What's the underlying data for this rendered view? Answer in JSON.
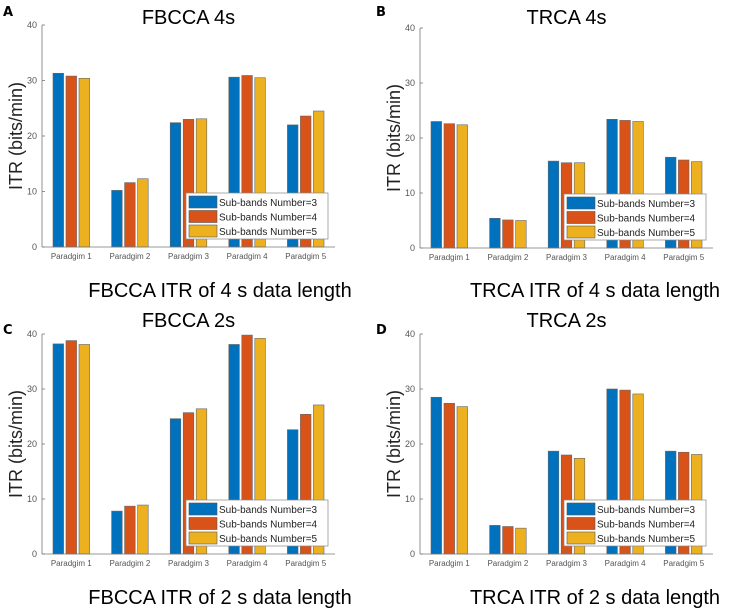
{
  "colors": {
    "s3": "#0072BD",
    "s4": "#D95319",
    "s5": "#EDB120"
  },
  "chart_data": [
    {
      "type": "bar",
      "panel_label": "A",
      "title": "FBCCA 4s",
      "caption": "FBCCA ITR of 4 s data length",
      "ylabel": "ITR (bits/min)",
      "xlabel": "",
      "ylim": [
        0,
        40
      ],
      "yticks": [
        0,
        10,
        20,
        30,
        40
      ],
      "categories": [
        "Paradgim 1",
        "Paradgim 2",
        "Paradgim 3",
        "Paradgim 4",
        "Paradgim 5"
      ],
      "legend_position": "bottom-right",
      "series": [
        {
          "name": "Sub-bands Number=3",
          "values": [
            31.3,
            10.2,
            22.4,
            30.6,
            22.0
          ]
        },
        {
          "name": "Sub-bands Number=4",
          "values": [
            30.8,
            11.6,
            23.0,
            30.9,
            23.6
          ]
        },
        {
          "name": "Sub-bands Number=5",
          "values": [
            30.4,
            12.3,
            23.1,
            30.5,
            24.5
          ]
        }
      ]
    },
    {
      "type": "bar",
      "panel_label": "B",
      "title": "TRCA 4s",
      "caption": "TRCA ITR of 4 s data length",
      "ylabel": "ITR (bits/min)",
      "xlabel": "",
      "ylim": [
        0,
        40
      ],
      "yticks": [
        0,
        10,
        20,
        30,
        40
      ],
      "categories": [
        "Paradgim 1",
        "Paradgim 2",
        "Paradgim 3",
        "Paradgim 4",
        "Paradgim 5"
      ],
      "legend_position": "bottom-right",
      "series": [
        {
          "name": "Sub-bands Number=3",
          "values": [
            23.0,
            5.4,
            15.8,
            23.4,
            16.5
          ]
        },
        {
          "name": "Sub-bands Number=4",
          "values": [
            22.6,
            5.1,
            15.5,
            23.2,
            16.0
          ]
        },
        {
          "name": "Sub-bands Number=5",
          "values": [
            22.4,
            5.0,
            15.5,
            23.0,
            15.7
          ]
        }
      ]
    },
    {
      "type": "bar",
      "panel_label": "C",
      "title": "FBCCA 2s",
      "caption": "FBCCA ITR of 2 s data length",
      "ylabel": "ITR (bits/min)",
      "xlabel": "",
      "ylim": [
        0,
        40
      ],
      "yticks": [
        0,
        10,
        20,
        30,
        40
      ],
      "categories": [
        "Paradgim 1",
        "Paradgim 2",
        "Paradgim 3",
        "Paradgim 4",
        "Paradgim 5"
      ],
      "legend_position": "bottom-right",
      "series": [
        {
          "name": "Sub-bands Number=3",
          "values": [
            38.2,
            7.8,
            24.6,
            38.1,
            22.6
          ]
        },
        {
          "name": "Sub-bands Number=4",
          "values": [
            38.8,
            8.7,
            25.7,
            39.8,
            25.4
          ]
        },
        {
          "name": "Sub-bands Number=5",
          "values": [
            38.1,
            8.9,
            26.4,
            39.2,
            27.1
          ]
        }
      ]
    },
    {
      "type": "bar",
      "panel_label": "D",
      "title": "TRCA 2s",
      "caption": "TRCA ITR of 2 s data length",
      "ylabel": "ITR (bits/min)",
      "xlabel": "",
      "ylim": [
        0,
        40
      ],
      "yticks": [
        0,
        10,
        20,
        30,
        40
      ],
      "categories": [
        "Paradgim 1",
        "Paradgim 2",
        "Paradgim 3",
        "Paradgim 4",
        "Paradgim 5"
      ],
      "legend_position": "bottom-right",
      "series": [
        {
          "name": "Sub-bands Number=3",
          "values": [
            28.5,
            5.2,
            18.7,
            30.0,
            18.7
          ]
        },
        {
          "name": "Sub-bands Number=4",
          "values": [
            27.4,
            5.0,
            18.0,
            29.8,
            18.5
          ]
        },
        {
          "name": "Sub-bands Number=5",
          "values": [
            26.8,
            4.7,
            17.4,
            29.1,
            18.1
          ]
        }
      ]
    }
  ]
}
